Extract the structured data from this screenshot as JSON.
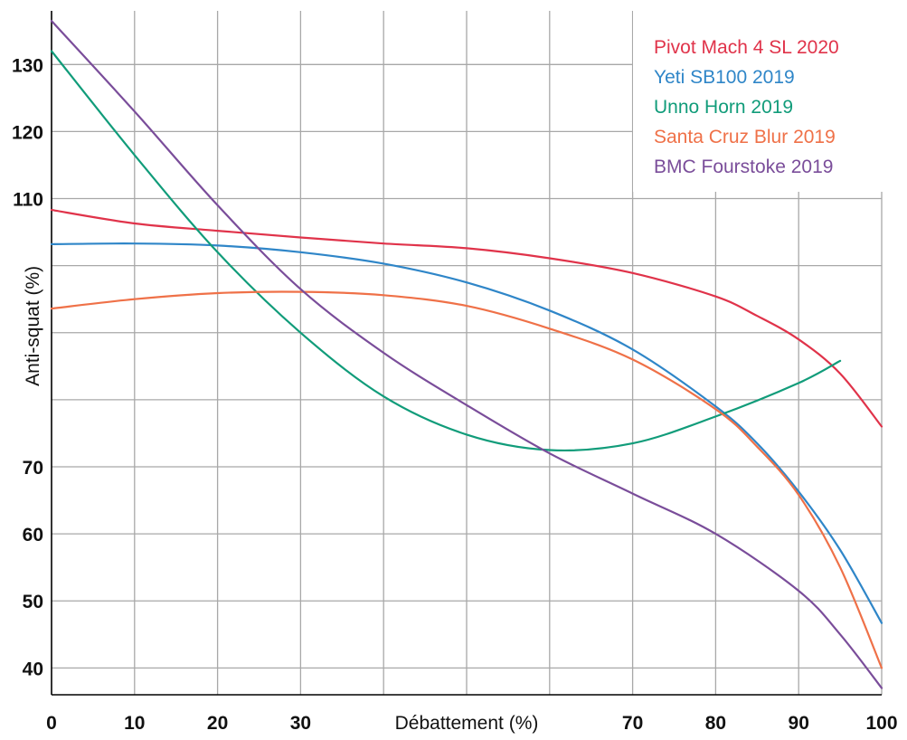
{
  "chart_data": {
    "type": "line",
    "title": "",
    "xlabel": "Débattement (%)",
    "ylabel": "Anti-squat (%)",
    "xlim": [
      0,
      100
    ],
    "ylim": [
      36,
      138
    ],
    "grid": true,
    "legend_position": "top-right",
    "x_ticks": [
      "0",
      "10",
      "20",
      "30",
      "70",
      "80",
      "90",
      "100"
    ],
    "y_ticks": [
      "130",
      "120",
      "110",
      "70",
      "60",
      "50",
      "40"
    ],
    "series": [
      {
        "name": "Pivot Mach 4 SL 2020",
        "color": "#e0334a",
        "x": [
          0,
          10,
          20,
          30,
          40,
          50,
          60,
          70,
          80,
          85,
          90,
          95,
          100
        ],
        "y": [
          108.3,
          106.3,
          105.2,
          104.2,
          103.3,
          102.6,
          101.1,
          98.9,
          95.4,
          92.5,
          89.0,
          83.9,
          76.0
        ]
      },
      {
        "name": "Yeti SB100 2019",
        "color": "#2f86c8",
        "x": [
          0,
          10,
          20,
          30,
          40,
          50,
          60,
          70,
          80,
          85,
          90,
          95,
          100
        ],
        "y": [
          103.2,
          103.3,
          103.0,
          102.0,
          100.3,
          97.5,
          93.3,
          87.5,
          79.0,
          73.5,
          66.3,
          57.6,
          46.7
        ]
      },
      {
        "name": "Unno Horn 2019",
        "color": "#119c7a",
        "x": [
          0,
          10,
          20,
          30,
          40,
          50,
          60,
          70,
          80,
          90,
          95
        ],
        "y": [
          132.0,
          116.5,
          102.0,
          90.0,
          80.5,
          74.8,
          72.5,
          73.5,
          77.5,
          82.5,
          85.8
        ]
      },
      {
        "name": "Santa Cruz Blur 2019",
        "color": "#ef7148",
        "x": [
          0,
          10,
          20,
          30,
          40,
          50,
          60,
          70,
          80,
          85,
          90,
          95,
          100
        ],
        "y": [
          93.6,
          95.0,
          95.9,
          96.1,
          95.6,
          94.0,
          90.6,
          86.0,
          78.6,
          73.0,
          65.8,
          55.0,
          40.0
        ]
      },
      {
        "name": "BMC Fourstoke 2019",
        "color": "#7a4d9a",
        "x": [
          0,
          10,
          20,
          30,
          40,
          50,
          60,
          70,
          80,
          90,
          95,
          100
        ],
        "y": [
          136.5,
          123.0,
          109.0,
          96.5,
          87.0,
          79.2,
          72.0,
          66.0,
          60.0,
          51.5,
          45.0,
          37.0
        ]
      }
    ]
  }
}
